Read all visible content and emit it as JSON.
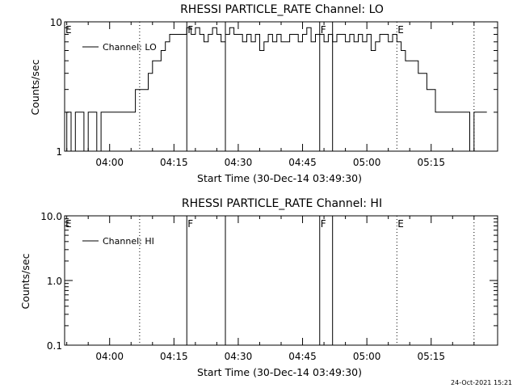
{
  "footer": {
    "timestamp": "24-Oct-2021 15:21"
  },
  "chart_data": [
    {
      "type": "line",
      "title": "RHESSI PARTICLE_RATE Channel: LO",
      "xlabel": "Start Time (30-Dec-14 03:49:30)",
      "ylabel": "Counts/sec",
      "yscale": "log",
      "ylim": [
        1,
        10
      ],
      "xlim": [
        "03:49:30",
        "05:30:30"
      ],
      "x_ticks": [
        "04:00",
        "04:15",
        "04:30",
        "04:45",
        "05:00",
        "05:15"
      ],
      "y_ticks": [
        "1",
        "10"
      ],
      "legend": {
        "position": "top-left",
        "entries": [
          "Channel: LO"
        ]
      },
      "series": [
        {
          "name": "Channel: LO",
          "x": [
            "03:49:30",
            "03:50:00",
            "03:51:00",
            "03:52:00",
            "03:53:00",
            "03:54:00",
            "03:55:00",
            "03:56:00",
            "03:57:00",
            "03:58:00",
            "03:59:00",
            "04:00:00",
            "04:01:00",
            "04:02:00",
            "04:03:00",
            "04:04:00",
            "04:05:00",
            "04:06:00",
            "04:07:00",
            "04:08:00",
            "04:09:00",
            "04:10:00",
            "04:11:00",
            "04:12:00",
            "04:13:00",
            "04:14:00",
            "04:15:00",
            "04:16:00",
            "04:17:00",
            "04:18:00",
            "04:19:00",
            "04:20:00",
            "04:21:00",
            "04:22:00",
            "04:23:00",
            "04:24:00",
            "04:25:00",
            "04:26:00",
            "04:27:00",
            "04:28:00",
            "04:29:00",
            "04:30:00",
            "04:31:00",
            "04:32:00",
            "04:33:00",
            "04:34:00",
            "04:35:00",
            "04:36:00",
            "04:37:00",
            "04:38:00",
            "04:39:00",
            "04:40:00",
            "04:41:00",
            "04:42:00",
            "04:43:00",
            "04:44:00",
            "04:45:00",
            "04:46:00",
            "04:47:00",
            "04:48:00",
            "04:49:00",
            "04:50:00",
            "04:51:00",
            "04:52:00",
            "04:53:00",
            "04:54:00",
            "04:55:00",
            "04:56:00",
            "04:57:00",
            "04:58:00",
            "04:59:00",
            "05:00:00",
            "05:01:00",
            "05:02:00",
            "05:03:00",
            "05:04:00",
            "05:05:00",
            "05:06:00",
            "05:07:00",
            "05:08:00",
            "05:09:00",
            "05:10:00",
            "05:11:00",
            "05:12:00",
            "05:13:00",
            "05:14:00",
            "05:15:00",
            "05:16:00",
            "05:17:00",
            "05:18:00",
            "05:19:00",
            "05:20:00",
            "05:21:00",
            "05:22:00",
            "05:23:00",
            "05:24:00",
            "05:25:00",
            "05:26:00",
            "05:27:00"
          ],
          "values": [
            1,
            2,
            1,
            2,
            2,
            1,
            2,
            2,
            1,
            2,
            2,
            2,
            2,
            2,
            2,
            2,
            2,
            3,
            3,
            3,
            4,
            5,
            5,
            6,
            7,
            8,
            8,
            8,
            8,
            9,
            8,
            9,
            8,
            7,
            8,
            9,
            8,
            7,
            8,
            9,
            8,
            8,
            7,
            8,
            7,
            8,
            6,
            7,
            8,
            7,
            8,
            7,
            7,
            8,
            8,
            7,
            8,
            9,
            7,
            8,
            8,
            7,
            8,
            7,
            8,
            8,
            7,
            8,
            7,
            8,
            7,
            8,
            6,
            7,
            8,
            8,
            7,
            8,
            7,
            6,
            5,
            5,
            5,
            4,
            4,
            3,
            3,
            2,
            2,
            2,
            2,
            2,
            2,
            2,
            2,
            1,
            2,
            2,
            2
          ]
        }
      ],
      "vlines": [
        {
          "time": "04:07:00",
          "style": "dotted",
          "mark": ""
        },
        {
          "time": "04:18:00",
          "style": "solid",
          "mark": "F"
        },
        {
          "time": "04:27:00",
          "style": "solid",
          "mark": ""
        },
        {
          "time": "04:49:00",
          "style": "solid",
          "mark": "F"
        },
        {
          "time": "04:52:00",
          "style": "solid",
          "mark": ""
        },
        {
          "time": "05:07:00",
          "style": "dotted",
          "mark": "E"
        },
        {
          "time": "05:25:00",
          "style": "dotted",
          "mark": ""
        }
      ],
      "edge_marks": [
        {
          "label": "E",
          "position": "top-left"
        }
      ]
    },
    {
      "type": "line",
      "title": "RHESSI PARTICLE_RATE Channel: HI",
      "xlabel": "Start Time (30-Dec-14 03:49:30)",
      "ylabel": "Counts/sec",
      "yscale": "log",
      "ylim": [
        0.1,
        10
      ],
      "xlim": [
        "03:49:30",
        "05:30:30"
      ],
      "x_ticks": [
        "04:00",
        "04:15",
        "04:30",
        "04:45",
        "05:00",
        "05:15"
      ],
      "y_ticks": [
        "0.1",
        "1.0",
        "10.0"
      ],
      "legend": {
        "position": "top-left",
        "entries": [
          "Channel: HI"
        ]
      },
      "series": [
        {
          "name": "Channel: HI",
          "x": [],
          "values": []
        }
      ],
      "vlines": [
        {
          "time": "04:07:00",
          "style": "dotted",
          "mark": ""
        },
        {
          "time": "04:18:00",
          "style": "solid",
          "mark": "F"
        },
        {
          "time": "04:27:00",
          "style": "solid",
          "mark": ""
        },
        {
          "time": "04:49:00",
          "style": "solid",
          "mark": "F"
        },
        {
          "time": "04:52:00",
          "style": "solid",
          "mark": ""
        },
        {
          "time": "05:07:00",
          "style": "dotted",
          "mark": "E"
        },
        {
          "time": "05:25:00",
          "style": "dotted",
          "mark": ""
        }
      ],
      "edge_marks": [
        {
          "label": "E",
          "position": "top-left"
        }
      ]
    }
  ]
}
